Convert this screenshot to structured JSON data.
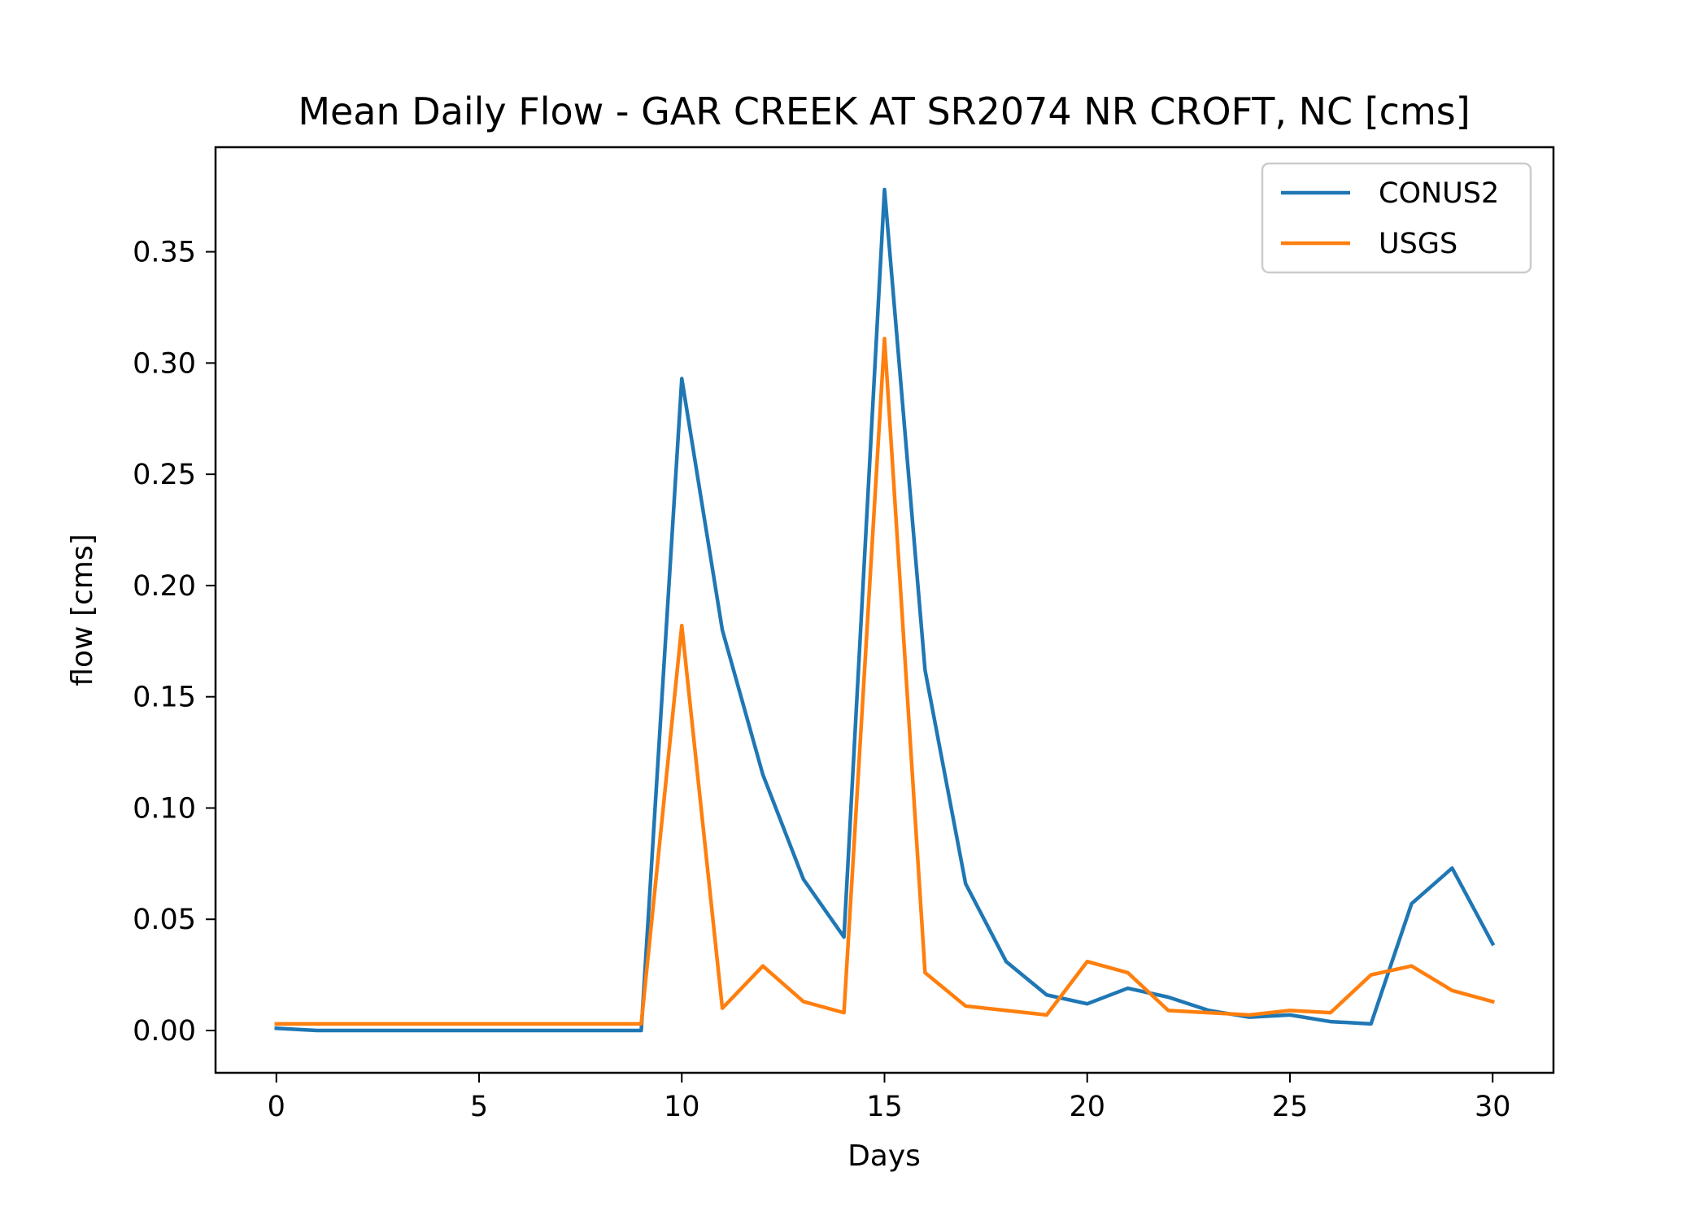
{
  "chart_data": {
    "type": "line",
    "title": "Mean Daily Flow - GAR CREEK AT SR2074 NR CROFT, NC [cms]",
    "xlabel": "Days",
    "ylabel": "flow [cms]",
    "xlim": [
      -1.5,
      31.5
    ],
    "ylim": [
      -0.019,
      0.397
    ],
    "xticks": [
      0,
      5,
      10,
      15,
      20,
      25,
      30
    ],
    "yticks": [
      0.0,
      0.05,
      0.1,
      0.15,
      0.2,
      0.25,
      0.3,
      0.35
    ],
    "ytick_labels": [
      "0.00",
      "0.05",
      "0.10",
      "0.15",
      "0.20",
      "0.25",
      "0.30",
      "0.35"
    ],
    "grid": false,
    "legend": "top-right",
    "x": [
      0,
      1,
      2,
      3,
      4,
      5,
      6,
      7,
      8,
      9,
      10,
      11,
      12,
      13,
      14,
      15,
      16,
      17,
      18,
      19,
      20,
      21,
      22,
      23,
      24,
      25,
      26,
      27,
      28,
      29,
      30
    ],
    "series": [
      {
        "name": "CONUS2",
        "color": "#1f77b4",
        "values": [
          0.001,
          0.0,
          0.0,
          0.0,
          0.0,
          0.0,
          0.0,
          0.0,
          0.0,
          0.0,
          0.293,
          0.18,
          0.115,
          0.068,
          0.042,
          0.378,
          0.162,
          0.066,
          0.031,
          0.016,
          0.012,
          0.019,
          0.015,
          0.009,
          0.006,
          0.007,
          0.004,
          0.003,
          0.057,
          0.073,
          0.039
        ]
      },
      {
        "name": "USGS",
        "color": "#ff7f0e",
        "values": [
          0.003,
          0.003,
          0.003,
          0.003,
          0.003,
          0.003,
          0.003,
          0.003,
          0.003,
          0.003,
          0.182,
          0.01,
          0.029,
          0.013,
          0.008,
          0.311,
          0.026,
          0.011,
          0.009,
          0.007,
          0.031,
          0.026,
          0.009,
          0.008,
          0.007,
          0.009,
          0.008,
          0.025,
          0.029,
          0.018,
          0.013
        ]
      }
    ]
  }
}
